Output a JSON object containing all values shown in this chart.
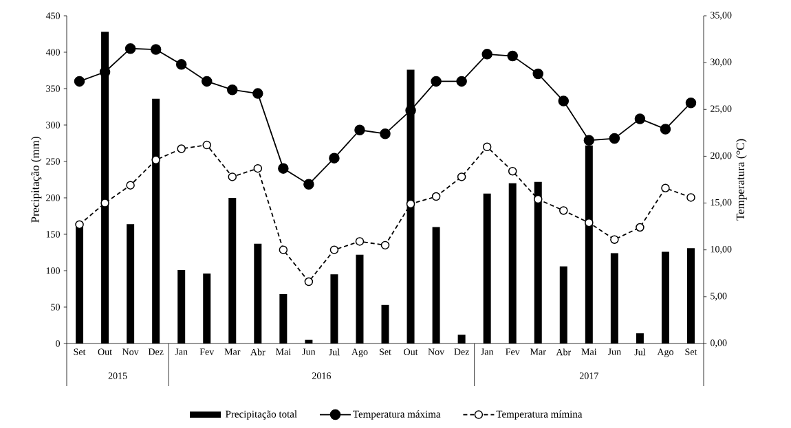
{
  "chart_data": {
    "type": "bar",
    "categories": [
      "Set",
      "Out",
      "Nov",
      "Dez",
      "Jan",
      "Fev",
      "Mar",
      "Abr",
      "Mai",
      "Jun",
      "Jul",
      "Ago",
      "Set",
      "Out",
      "Nov",
      "Dez",
      "Jan",
      "Fev",
      "Mar",
      "Abr",
      "Mai",
      "Jun",
      "Jul",
      "Ago",
      "Set"
    ],
    "ylabel": "Precipitação (mm)",
    "y2label": "Temperatura (°C)",
    "annotations": [
      "2015",
      "2016",
      "2017"
    ],
    "series": [
      {
        "name": "Precipitação total",
        "color": "#000000",
        "values": [
          163,
          428,
          164,
          336,
          101,
          96,
          200,
          137,
          68,
          5,
          95,
          122,
          53,
          376,
          160,
          12,
          206,
          220,
          222,
          106,
          272,
          124,
          14,
          126,
          131
        ]
      },
      {
        "name": "Temperatura máxima",
        "type": "line",
        "axis": "y2",
        "color": "#000000",
        "marker": "circle",
        "line_style": "solid",
        "values": [
          28.0,
          29.0,
          31.5,
          31.4,
          29.8,
          28.0,
          27.1,
          26.7,
          18.7,
          17.0,
          19.8,
          22.8,
          22.4,
          24.9,
          28.0,
          28.0,
          30.9,
          30.7,
          28.8,
          25.9,
          21.7,
          21.9,
          24.0,
          22.9,
          25.7
        ]
      },
      {
        "name": "Temperatura mímina",
        "type": "line",
        "axis": "y2",
        "color": "#000000",
        "marker": "circle",
        "line_style": "dashed",
        "values": [
          12.7,
          15.0,
          16.9,
          19.6,
          20.8,
          21.2,
          17.8,
          18.7,
          10.0,
          6.6,
          10.0,
          10.9,
          10.5,
          14.9,
          15.7,
          17.8,
          21.0,
          18.4,
          15.4,
          14.2,
          12.9,
          11.1,
          12.4,
          16.6,
          15.6
        ]
      }
    ],
    "ylim": [
      0,
      450
    ],
    "yticks": [
      0,
      50,
      100,
      150,
      200,
      250,
      300,
      350,
      400,
      450
    ],
    "y2lim": [
      0,
      35
    ],
    "y2ticks": [
      {
        "value": 0,
        "label": "0,00"
      },
      {
        "value": 5,
        "label": "5,00"
      },
      {
        "value": 10,
        "label": "10,00"
      },
      {
        "value": 15,
        "label": "15,00"
      },
      {
        "value": 20,
        "label": "20,00"
      },
      {
        "value": 25,
        "label": "25,00"
      },
      {
        "value": 30,
        "label": "30,00"
      },
      {
        "value": 35,
        "label": "35,00"
      }
    ],
    "grid": false,
    "legend": "bottom"
  }
}
